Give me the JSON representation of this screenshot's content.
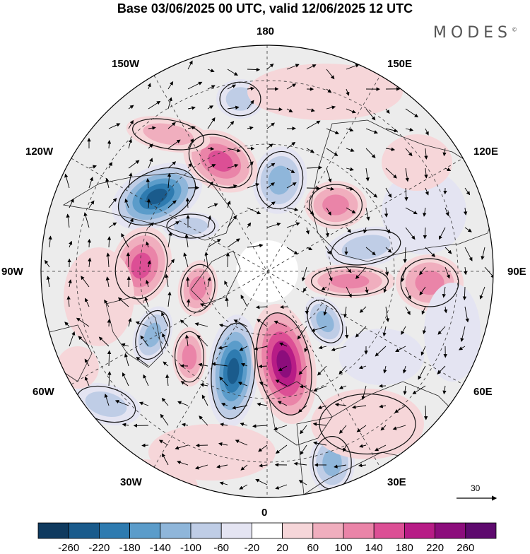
{
  "header": {
    "title": "Base 03/06/2025 00 UTC, valid 12/06/2025 12 UTC",
    "brand": "MODES",
    "brand_mark": "©"
  },
  "map": {
    "projection": "north-polar-stereographic",
    "longitude_labels": {
      "top": "180",
      "bottom": "0",
      "left": "90W",
      "right": "90E",
      "upper_left_1": "150W",
      "upper_left_2": "120W",
      "upper_right_1": "150E",
      "upper_right_2": "120E",
      "lower_left_1": "60W",
      "lower_left_2": "30W",
      "lower_right_1": "60E",
      "lower_right_2": "30E"
    },
    "reference_vector": {
      "label": "30"
    }
  },
  "colorbar": {
    "ticks": [
      "-260",
      "-220",
      "-180",
      "-140",
      "-100",
      "-60",
      "-20",
      "20",
      "60",
      "100",
      "140",
      "180",
      "220",
      "260"
    ],
    "colors": [
      "#0f3a5f",
      "#1a5b8c",
      "#2e7bb0",
      "#5b9cca",
      "#8fb6da",
      "#bfcde6",
      "#e4e4f2",
      "#ffffff",
      "#f6d6d9",
      "#f0aebe",
      "#ea84a8",
      "#dc4f95",
      "#b71c86",
      "#8c0d7c",
      "#5e0a6e"
    ]
  },
  "colors": {
    "land_outline": "#222222",
    "graticule": "#333333",
    "neutral_fill": "#ececec"
  }
}
